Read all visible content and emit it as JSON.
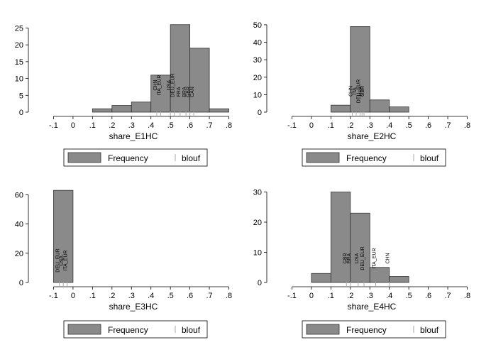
{
  "chart_data": [
    {
      "type": "bar",
      "xlabel": "share_E1HC",
      "xticks": [
        -0.1,
        0,
        0.1,
        0.2,
        0.3,
        0.4,
        0.5,
        0.6,
        0.7,
        0.8
      ],
      "xtick_labels": [
        "-.1",
        "0",
        ".1",
        ".2",
        ".3",
        ".4",
        ".5",
        ".6",
        ".7",
        ".8"
      ],
      "xlim": [
        -0.2,
        0.82
      ],
      "yticks": [
        0,
        5,
        10,
        15,
        20,
        25
      ],
      "ylim": [
        0,
        27
      ],
      "bins": [
        [
          0.1,
          0.2,
          1
        ],
        [
          0.2,
          0.3,
          2
        ],
        [
          0.3,
          0.4,
          3
        ],
        [
          0.4,
          0.5,
          11
        ],
        [
          0.5,
          0.6,
          26
        ],
        [
          0.6,
          0.7,
          19
        ],
        [
          0.7,
          0.8,
          1
        ]
      ],
      "point_labels": [
        {
          "x": 0.43,
          "y": 8,
          "text": "CHN"
        },
        {
          "x": 0.45,
          "y": 8,
          "text": "ITA_EUR"
        },
        {
          "x": 0.5,
          "y": 8,
          "text": "USA"
        },
        {
          "x": 0.52,
          "y": 8,
          "text": "DEU_EUR"
        },
        {
          "x": 0.55,
          "y": 6,
          "text": "FRA"
        },
        {
          "x": 0.58,
          "y": 6,
          "text": "BRA"
        },
        {
          "x": 0.6,
          "y": 6,
          "text": "GBR"
        },
        {
          "x": 0.62,
          "y": 6,
          "text": "CAN"
        }
      ],
      "legend": [
        "Frequency",
        "blouf"
      ]
    },
    {
      "type": "bar",
      "xlabel": "share_E2HC",
      "xticks": [
        -0.1,
        0,
        0.1,
        0.2,
        0.3,
        0.4,
        0.5,
        0.6,
        0.7,
        0.8
      ],
      "xtick_labels": [
        "-.1",
        "0",
        ".1",
        ".2",
        ".3",
        ".4",
        ".5",
        ".6",
        ".7",
        ".8"
      ],
      "xlim": [
        -0.2,
        0.82
      ],
      "yticks": [
        0,
        10,
        20,
        30,
        40,
        50
      ],
      "ylim": [
        0,
        52
      ],
      "bins": [
        [
          0.1,
          0.2,
          4
        ],
        [
          0.2,
          0.3,
          49
        ],
        [
          0.3,
          0.4,
          7
        ],
        [
          0.4,
          0.5,
          3
        ]
      ],
      "point_labels": [
        {
          "x": 0.21,
          "y": 12,
          "text": "CHN"
        },
        {
          "x": 0.23,
          "y": 12,
          "text": "ITA"
        },
        {
          "x": 0.25,
          "y": 12,
          "text": "DEU_EUR"
        },
        {
          "x": 0.26,
          "y": 12,
          "text": "USA"
        },
        {
          "x": 0.27,
          "y": 12,
          "text": "GBR"
        }
      ],
      "legend": [
        "Frequency",
        "blouf"
      ]
    },
    {
      "type": "bar",
      "xlabel": "share_E3HC",
      "xticks": [
        -0.1,
        0,
        0.1,
        0.2,
        0.3,
        0.4,
        0.5,
        0.6,
        0.7,
        0.8
      ],
      "xtick_labels": [
        "-.1",
        "0",
        ".1",
        ".2",
        ".3",
        ".4",
        ".5",
        ".6",
        ".7",
        ".8"
      ],
      "xlim": [
        -0.2,
        0.82
      ],
      "yticks": [
        0,
        20,
        40,
        60
      ],
      "ylim": [
        0,
        66
      ],
      "bins": [
        [
          -0.1,
          0,
          63
        ]
      ],
      "point_labels": [
        {
          "x": -0.07,
          "y": 15,
          "text": "DEU_EUR"
        },
        {
          "x": -0.05,
          "y": 15,
          "text": "USA"
        },
        {
          "x": -0.03,
          "y": 15,
          "text": "ITA_EUR"
        }
      ],
      "legend": [
        "Frequency",
        "blouf"
      ]
    },
    {
      "type": "bar",
      "xlabel": "share_E4HC",
      "xticks": [
        -0.1,
        0,
        0.1,
        0.2,
        0.3,
        0.4,
        0.5,
        0.6,
        0.7,
        0.8
      ],
      "xtick_labels": [
        "-.1",
        "0",
        ".1",
        ".2",
        ".3",
        ".4",
        ".5",
        ".6",
        ".7",
        ".8"
      ],
      "xlim": [
        -0.2,
        0.82
      ],
      "yticks": [
        0,
        10,
        20,
        30
      ],
      "ylim": [
        0,
        32
      ],
      "bins": [
        [
          0,
          0.1,
          3
        ],
        [
          0.1,
          0.2,
          30
        ],
        [
          0.2,
          0.3,
          23
        ],
        [
          0.3,
          0.4,
          5
        ],
        [
          0.4,
          0.5,
          2
        ]
      ],
      "point_labels": [
        {
          "x": 0.18,
          "y": 8,
          "text": "GBR"
        },
        {
          "x": 0.2,
          "y": 8,
          "text": "BRA"
        },
        {
          "x": 0.24,
          "y": 8,
          "text": "USA"
        },
        {
          "x": 0.27,
          "y": 8,
          "text": "DEU_EUR"
        },
        {
          "x": 0.33,
          "y": 8,
          "text": "ITA_EUR"
        },
        {
          "x": 0.4,
          "y": 8,
          "text": "CHN"
        }
      ],
      "legend": [
        "Frequency",
        "blouf"
      ]
    }
  ]
}
